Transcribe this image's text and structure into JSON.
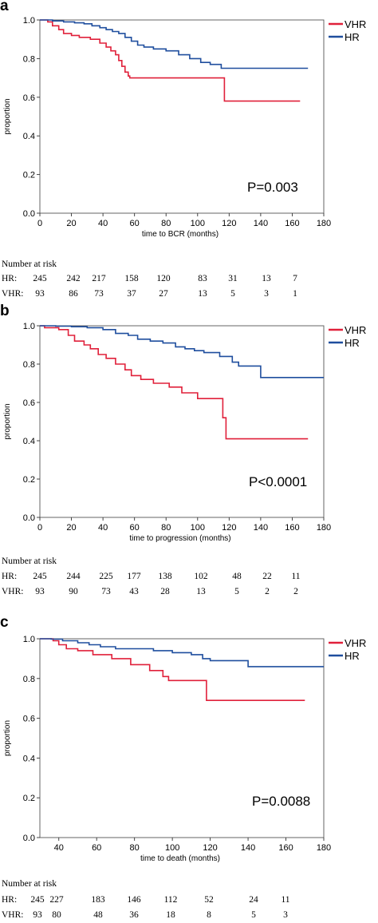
{
  "chart_data": [
    {
      "panel_label": "a",
      "type": "line",
      "xlabel": "time to BCR (months)",
      "ylabel": "proportion",
      "xlim": [
        0,
        180
      ],
      "ylim": [
        0,
        1.0
      ],
      "xticks": [
        0,
        20,
        40,
        60,
        80,
        100,
        120,
        140,
        160,
        180
      ],
      "yticks": [
        0.0,
        0.2,
        0.4,
        0.6,
        0.8,
        1.0
      ],
      "grid": false,
      "legend_position": "top-right",
      "annotation": "P=0.003",
      "series": [
        {
          "name": "VHR",
          "color": "#e0203a",
          "step": true,
          "x": [
            0,
            5,
            8,
            12,
            15,
            20,
            25,
            32,
            38,
            42,
            45,
            48,
            50,
            52,
            54,
            56,
            57,
            116,
            117,
            165
          ],
          "y": [
            1.0,
            0.99,
            0.97,
            0.95,
            0.93,
            0.92,
            0.91,
            0.9,
            0.88,
            0.86,
            0.84,
            0.82,
            0.79,
            0.76,
            0.73,
            0.71,
            0.7,
            0.7,
            0.58,
            0.58
          ]
        },
        {
          "name": "HR",
          "color": "#1f4e9e",
          "step": true,
          "x": [
            0,
            8,
            15,
            22,
            28,
            33,
            38,
            42,
            46,
            50,
            54,
            58,
            62,
            66,
            72,
            80,
            88,
            95,
            102,
            108,
            115,
            170
          ],
          "y": [
            1.0,
            0.995,
            0.99,
            0.985,
            0.98,
            0.97,
            0.96,
            0.95,
            0.94,
            0.93,
            0.91,
            0.89,
            0.87,
            0.86,
            0.85,
            0.84,
            0.82,
            0.8,
            0.78,
            0.77,
            0.75,
            0.75
          ]
        }
      ]
    },
    {
      "panel_label": "b",
      "type": "line",
      "xlabel": "time to progression (months)",
      "ylabel": "proportion",
      "xlim": [
        0,
        180
      ],
      "ylim": [
        0,
        1.0
      ],
      "xticks": [
        0,
        20,
        40,
        60,
        80,
        100,
        120,
        140,
        160,
        180
      ],
      "yticks": [
        0.0,
        0.2,
        0.4,
        0.6,
        0.8,
        1.0
      ],
      "grid": false,
      "legend_position": "top-right",
      "annotation": "P<0.0001",
      "series": [
        {
          "name": "VHR",
          "color": "#e0203a",
          "step": true,
          "x": [
            0,
            3,
            12,
            18,
            22,
            28,
            32,
            37,
            42,
            48,
            54,
            58,
            64,
            72,
            82,
            90,
            100,
            114,
            116,
            118,
            170
          ],
          "y": [
            1.0,
            0.99,
            0.98,
            0.95,
            0.92,
            0.9,
            0.88,
            0.85,
            0.83,
            0.8,
            0.77,
            0.74,
            0.72,
            0.7,
            0.68,
            0.65,
            0.62,
            0.62,
            0.52,
            0.41,
            0.41
          ]
        },
        {
          "name": "HR",
          "color": "#1f4e9e",
          "step": true,
          "x": [
            0,
            10,
            20,
            30,
            40,
            48,
            56,
            62,
            70,
            78,
            86,
            92,
            98,
            104,
            114,
            122,
            126,
            138,
            140,
            180
          ],
          "y": [
            1.0,
            0.998,
            0.995,
            0.99,
            0.98,
            0.96,
            0.95,
            0.93,
            0.92,
            0.91,
            0.89,
            0.88,
            0.87,
            0.86,
            0.84,
            0.81,
            0.79,
            0.79,
            0.73,
            0.73
          ]
        }
      ]
    },
    {
      "panel_label": "c",
      "type": "line",
      "xlabel": "time to death (months)",
      "ylabel": "proportion",
      "xlim": [
        30,
        180
      ],
      "ylim": [
        0,
        1.0
      ],
      "xticks": [
        40,
        60,
        80,
        100,
        120,
        140,
        160,
        180
      ],
      "yticks": [
        0.0,
        0.2,
        0.4,
        0.6,
        0.8,
        1.0
      ],
      "grid": false,
      "legend_position": "top-right",
      "annotation": "P=0.0088",
      "series": [
        {
          "name": "VHR",
          "color": "#e0203a",
          "step": true,
          "x": [
            30,
            37,
            40,
            44,
            50,
            58,
            68,
            78,
            88,
            95,
            98,
            116,
            118,
            170
          ],
          "y": [
            1.0,
            0.99,
            0.97,
            0.95,
            0.94,
            0.92,
            0.9,
            0.87,
            0.84,
            0.81,
            0.79,
            0.79,
            0.69,
            0.69
          ]
        },
        {
          "name": "HR",
          "color": "#1f4e9e",
          "step": true,
          "x": [
            30,
            36,
            42,
            50,
            56,
            62,
            70,
            80,
            90,
            100,
            110,
            116,
            120,
            138,
            140,
            180
          ],
          "y": [
            1.0,
            0.998,
            0.99,
            0.98,
            0.97,
            0.96,
            0.95,
            0.95,
            0.94,
            0.93,
            0.92,
            0.9,
            0.89,
            0.89,
            0.86,
            0.86
          ]
        }
      ]
    }
  ],
  "risk_tables": [
    {
      "title": "Number at risk",
      "rows": [
        {
          "label": "HR:",
          "values": [
            "245",
            "242",
            "217",
            "158",
            "120",
            "83",
            "31",
            "13",
            "7"
          ]
        },
        {
          "label": "VHR:",
          "values": [
            "93",
            "86",
            "73",
            "37",
            "27",
            "13",
            "5",
            "3",
            "1"
          ]
        }
      ]
    },
    {
      "title": "Number at risk",
      "rows": [
        {
          "label": "HR:",
          "values": [
            "245",
            "244",
            "225",
            "177",
            "138",
            "102",
            "48",
            "22",
            "11"
          ]
        },
        {
          "label": "VHR:",
          "values": [
            "93",
            "90",
            "73",
            "43",
            "28",
            "13",
            "5",
            "2",
            "2"
          ]
        }
      ]
    },
    {
      "title": "Number at risk",
      "rows": [
        {
          "label": "HR:",
          "values": [
            "245",
            "227",
            "183",
            "146",
            "112",
            "52",
            "24",
            "11"
          ]
        },
        {
          "label": "VHR:",
          "values": [
            "93",
            "80",
            "48",
            "36",
            "18",
            "8",
            "5",
            "3"
          ]
        }
      ]
    }
  ]
}
